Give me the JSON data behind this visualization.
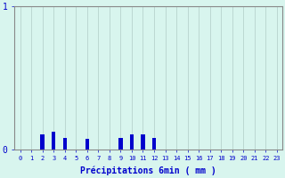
{
  "xlabel": "Précipitations 6min ( mm )",
  "categories": [
    0,
    1,
    2,
    3,
    4,
    5,
    6,
    7,
    8,
    9,
    10,
    11,
    12,
    13,
    14,
    15,
    16,
    17,
    18,
    19,
    20,
    21,
    22,
    23
  ],
  "values": [
    0,
    0,
    0.1,
    0.12,
    0.08,
    0,
    0.07,
    0,
    0,
    0.08,
    0.1,
    0.1,
    0.08,
    0,
    0,
    0,
    0,
    0,
    0,
    0,
    0,
    0,
    0,
    0
  ],
  "ylim": [
    0,
    1.0
  ],
  "yticks": [
    0,
    1
  ],
  "bar_color": "#0000cc",
  "background_color": "#d8f5ee",
  "grid_color": "#b0ccc6",
  "axis_color": "#888888",
  "text_color": "#0000cc",
  "bar_width": 0.35
}
